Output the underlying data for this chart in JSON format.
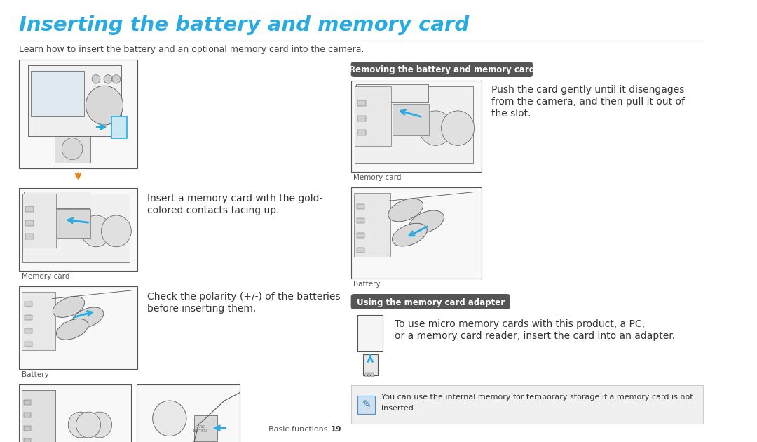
{
  "title": "Inserting the battery and memory card",
  "title_color": "#29ABE2",
  "subtitle": "Learn how to insert the battery and an optional memory card into the camera.",
  "subtitle_color": "#444444",
  "bg_color": "#ffffff",
  "section2_title": "Removing the battery and memory card",
  "section2_title_color": "#ffffff",
  "section2_title_bg": "#555555",
  "section3_title": "Using the memory card adapter",
  "section3_title_color": "#ffffff",
  "section3_title_bg": "#555555",
  "left_text1_line1": "Insert a memory card with the gold-",
  "left_text1_line2": "colored contacts facing up.",
  "left_text2_line1": "Check the polarity (+/-) of the batteries",
  "left_text2_line2": "before inserting them.",
  "right_text1_line1": "Push the card gently until it disengages",
  "right_text1_line2": "from the camera, and then pull it out of",
  "right_text1_line3": "the slot.",
  "right_text2_line1": "To use micro memory cards with this product, a PC,",
  "right_text2_line2": "or a memory card reader, insert the card into an adapter.",
  "note_line1": "You can use the internal memory for temporary storage if a memory card is not",
  "note_line2": "inserted.",
  "note_bg": "#f0f0f0",
  "footer_text": "Basic functions",
  "footer_page": "19",
  "label_memory": "Memory card",
  "label_battery": "Battery",
  "separator_color": "#bbbbbb",
  "text_color": "#333333",
  "small_text_color": "#555555",
  "arrow_orange": "#E8821A",
  "arrow_blue": "#29ABE2",
  "sketch_edge": "#555555",
  "sketch_face": "#f8f8f8",
  "sketch_inner": "#e8e8e8",
  "title_fontsize": 21,
  "subtitle_fontsize": 9,
  "body_fontsize": 10,
  "small_fontsize": 8,
  "label_fontsize": 7.5,
  "badge_fontsize": 8.5,
  "footer_fontsize": 8
}
